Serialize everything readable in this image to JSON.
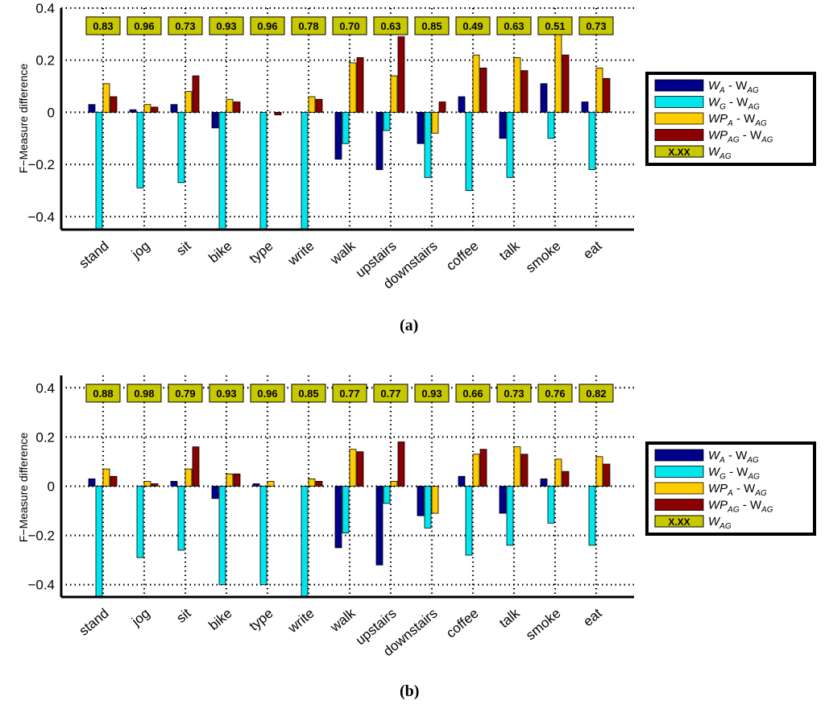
{
  "chart_data": [
    {
      "type": "bar",
      "panel_label": "a",
      "ylabel": "F−Measure difference",
      "ylim": [
        -0.45,
        0.4
      ],
      "yticks": [
        -0.4,
        -0.2,
        0,
        0.2,
        0.4
      ],
      "ytick_labels": [
        "−0.4",
        "−0.2",
        "0",
        "0.2",
        "0.4"
      ],
      "grid": "dotted",
      "legend_position": "right",
      "categories": [
        "stand",
        "jog",
        "sit",
        "bike",
        "type",
        "write",
        "walk",
        "upstairs",
        "downstairs",
        "coffee",
        "talk",
        "smoke",
        "eat"
      ],
      "series": [
        {
          "name": "W_A - W_AG",
          "color": "#00008b",
          "values": [
            0.03,
            0.01,
            0.03,
            -0.06,
            0.0,
            0.0,
            -0.18,
            -0.22,
            -0.12,
            0.06,
            -0.1,
            0.11,
            0.04
          ]
        },
        {
          "name": "W_G - W_AG",
          "color": "#00e5ee",
          "values": [
            -0.45,
            -0.29,
            -0.27,
            -0.45,
            -0.45,
            -0.45,
            -0.12,
            -0.07,
            -0.25,
            -0.3,
            -0.25,
            -0.1,
            -0.22
          ]
        },
        {
          "name": "WP_A - W_AG",
          "color": "#ffcc00",
          "values": [
            0.11,
            0.03,
            0.08,
            0.05,
            0.0,
            0.06,
            0.19,
            0.14,
            -0.08,
            0.22,
            0.21,
            0.31,
            0.17
          ]
        },
        {
          "name": "WP_AG - W_AG",
          "color": "#8b0000",
          "values": [
            0.06,
            0.02,
            0.14,
            0.04,
            -0.01,
            0.05,
            0.21,
            0.29,
            0.04,
            0.17,
            0.16,
            0.22,
            0.13
          ]
        }
      ],
      "box_values": [
        "0.83",
        "0.96",
        "0.73",
        "0.93",
        "0.96",
        "0.78",
        "0.70",
        "0.63",
        "0.85",
        "0.49",
        "0.63",
        "0.51",
        "0.73"
      ],
      "legend": [
        {
          "main": "W",
          "sub": "A",
          "rest": " - W",
          "sub2": "AG",
          "kind": "swatch",
          "color": "#00008b"
        },
        {
          "main": "W",
          "sub": "G",
          "rest": " - W",
          "sub2": "AG",
          "kind": "swatch",
          "color": "#00e5ee"
        },
        {
          "main": "WP",
          "sub": "A",
          "rest": " - W",
          "sub2": "AG",
          "kind": "swatch",
          "color": "#ffcc00"
        },
        {
          "main": "WP",
          "sub": "AG",
          "rest": " - W",
          "sub2": "AG",
          "kind": "swatch",
          "color": "#8b0000"
        },
        {
          "main": "W",
          "sub": "AG",
          "rest": "",
          "sub2": "",
          "kind": "box",
          "box_text": "X.XX"
        }
      ]
    },
    {
      "type": "bar",
      "panel_label": "b",
      "ylabel": "F−Measure difference",
      "ylim": [
        -0.45,
        0.45
      ],
      "yticks": [
        -0.4,
        -0.2,
        0,
        0.2,
        0.4
      ],
      "ytick_labels": [
        "−0.4",
        "−0.2",
        "0",
        "0.2",
        "0.4"
      ],
      "grid": "dotted",
      "legend_position": "right",
      "categories": [
        "stand",
        "jog",
        "sit",
        "bike",
        "type",
        "write",
        "walk",
        "upstairs",
        "downstairs",
        "coffee",
        "talk",
        "smoke",
        "eat"
      ],
      "series": [
        {
          "name": "W_A - W_AG",
          "color": "#00008b",
          "values": [
            0.03,
            0.0,
            0.02,
            -0.05,
            0.01,
            0.0,
            -0.25,
            -0.32,
            -0.12,
            0.04,
            -0.11,
            0.03,
            0.0
          ]
        },
        {
          "name": "W_G - W_AG",
          "color": "#00e5ee",
          "values": [
            -0.45,
            -0.29,
            -0.26,
            -0.4,
            -0.4,
            -0.45,
            -0.19,
            -0.07,
            -0.17,
            -0.28,
            -0.24,
            -0.15,
            -0.24
          ]
        },
        {
          "name": "WP_A - W_AG",
          "color": "#ffcc00",
          "values": [
            0.07,
            0.02,
            0.07,
            0.05,
            0.02,
            0.03,
            0.15,
            0.02,
            -0.11,
            0.13,
            0.16,
            0.11,
            0.12
          ]
        },
        {
          "name": "WP_AG - W_AG",
          "color": "#8b0000",
          "values": [
            0.04,
            0.01,
            0.16,
            0.05,
            0.0,
            0.02,
            0.14,
            0.18,
            0.0,
            0.15,
            0.13,
            0.06,
            0.09
          ]
        }
      ],
      "box_values": [
        "0.88",
        "0.98",
        "0.79",
        "0.93",
        "0.96",
        "0.85",
        "0.77",
        "0.77",
        "0.93",
        "0.66",
        "0.73",
        "0.76",
        "0.82"
      ],
      "legend": [
        {
          "main": "W",
          "sub": "A",
          "rest": " - W",
          "sub2": "AG",
          "kind": "swatch",
          "color": "#00008b"
        },
        {
          "main": "W",
          "sub": "G",
          "rest": " - W",
          "sub2": "AG",
          "kind": "swatch",
          "color": "#00e5ee"
        },
        {
          "main": "WP",
          "sub": "A",
          "rest": " - W",
          "sub2": "AG",
          "kind": "swatch",
          "color": "#ffcc00"
        },
        {
          "main": "WP",
          "sub": "AG",
          "rest": " - W",
          "sub2": "AG",
          "kind": "swatch",
          "color": "#8b0000"
        },
        {
          "main": "W",
          "sub": "AG",
          "rest": "",
          "sub2": "",
          "kind": "box",
          "box_text": "X.XX"
        }
      ]
    }
  ],
  "labels": {
    "panel_a": "(a)",
    "panel_b": "(b)"
  },
  "colors": {
    "box_fill": "#c8c800",
    "box_stroke": "#000000"
  }
}
